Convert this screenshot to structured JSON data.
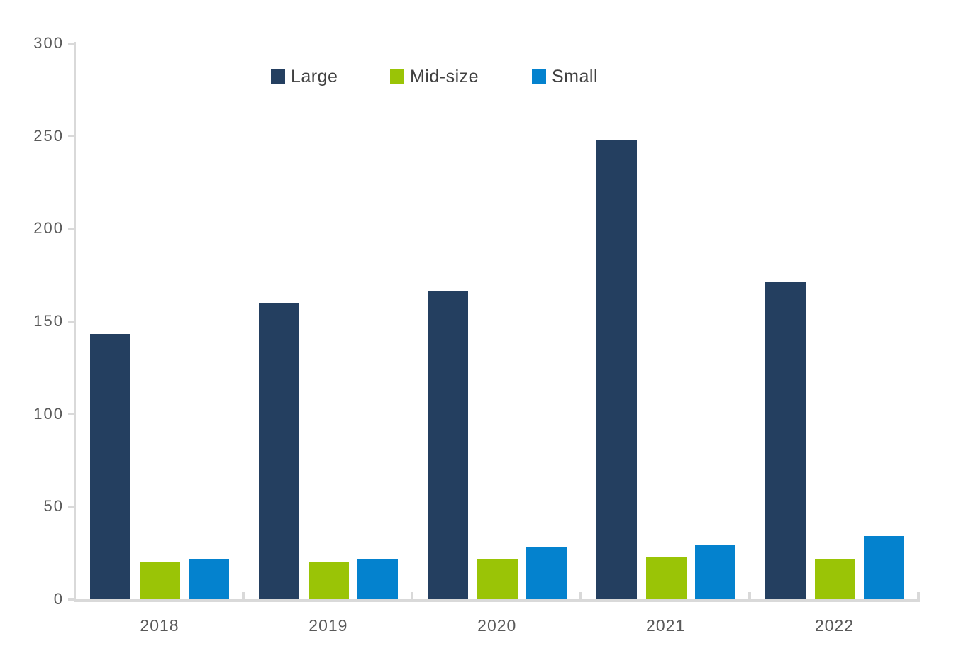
{
  "chart_data": {
    "type": "bar",
    "title": "",
    "categories": [
      "2018",
      "2019",
      "2020",
      "2021",
      "2022"
    ],
    "series": [
      {
        "name": "Large",
        "color": "#243F60",
        "values": [
          143,
          160,
          166,
          248,
          171
        ]
      },
      {
        "name": "Mid-size",
        "color": "#9AC406",
        "values": [
          20,
          20,
          22,
          23,
          22
        ]
      },
      {
        "name": "Small",
        "color": "#0482CE",
        "values": [
          22,
          22,
          28,
          29,
          34
        ]
      }
    ],
    "xlabel": "",
    "ylabel": "",
    "ylim": [
      0,
      300
    ],
    "yticks": [
      0,
      50,
      100,
      150,
      200,
      250,
      300
    ],
    "grid": false,
    "legend_position": "top"
  },
  "colors": {
    "axis": "#d9d9d9",
    "tick_label": "#595959",
    "legend_text": "#404040",
    "background": "#ffffff"
  }
}
